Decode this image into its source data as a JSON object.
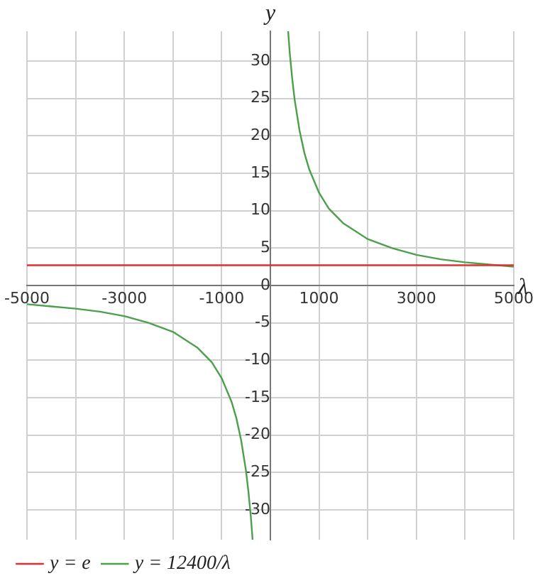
{
  "chart_data": {
    "type": "line",
    "xlabel": "λ",
    "ylabel": "y",
    "xlim": [
      -5000,
      5000
    ],
    "ylim": [
      -34,
      34
    ],
    "xticks": [
      -5000,
      {
        "value": -4000,
        "label": null
      },
      -3000,
      {
        "value": -2000,
        "label": null
      },
      -1000,
      {
        "value": 0,
        "label": null
      },
      1000,
      {
        "value": 2000,
        "label": null
      },
      3000,
      {
        "value": 4000,
        "label": null
      },
      5000
    ],
    "yticks": [
      -30,
      -25,
      -20,
      -15,
      -10,
      -5,
      0,
      5,
      10,
      15,
      20,
      25,
      30
    ],
    "series": [
      {
        "name": "y = e",
        "color": "#e03030",
        "x": [
          -5000,
          5000
        ],
        "values": [
          2.7,
          2.7
        ]
      },
      {
        "name": "y = 12400/λ",
        "color": "#4ca04c",
        "x": [
          -5000,
          -4500,
          -4000,
          -3500,
          -3000,
          -2500,
          -2000,
          -1500,
          -1200,
          -1000,
          -800,
          -700,
          -600,
          -500,
          -450,
          -400,
          -365,
          0,
          365,
          400,
          450,
          500,
          600,
          700,
          800,
          1000,
          1200,
          1500,
          2000,
          2500,
          3000,
          3500,
          4000,
          4500,
          5000
        ],
        "values": [
          -2.5,
          -2.8,
          -3.1,
          -3.5,
          -4.1,
          -5.0,
          -6.2,
          -8.3,
          -10.3,
          -12.4,
          -15.5,
          -17.7,
          -20.7,
          -24.8,
          -27.6,
          -31.0,
          -34.0,
          null,
          34.0,
          31.0,
          27.6,
          24.8,
          20.7,
          17.7,
          15.5,
          12.4,
          10.3,
          8.3,
          6.2,
          5.0,
          4.1,
          3.5,
          3.1,
          2.8,
          2.5
        ]
      }
    ],
    "grid": true,
    "legend": "bottom left",
    "marker": "none",
    "line_style": "solid"
  }
}
